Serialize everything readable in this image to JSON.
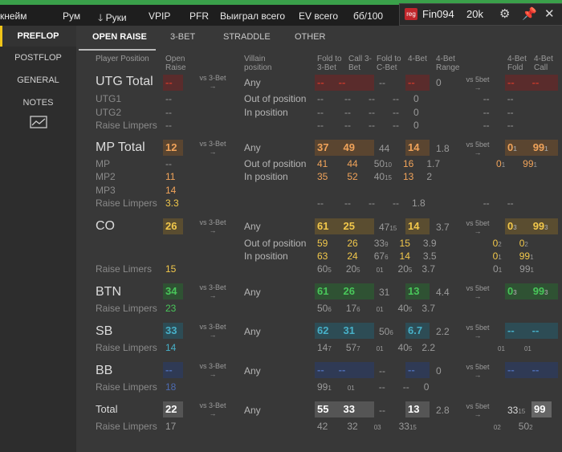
{
  "topbar": {
    "items": [
      "кнейм",
      "Рум",
      "Руки",
      "VPIP",
      "PFR",
      "Выиграл всего",
      "EV всего",
      "бб/100"
    ]
  },
  "player": {
    "badge": "reg",
    "name": "Fin094",
    "amount": "20k"
  },
  "sidebar": {
    "items": [
      "PREFLOP",
      "POSTFLOP",
      "GENERAL",
      "NOTES"
    ]
  },
  "tabs": [
    "OPEN RAISE",
    "3-BET",
    "STRADDLE",
    "OTHER"
  ],
  "headers": {
    "position": "Player Position",
    "open_raise": "Open Raise",
    "villain": "Villain position",
    "fold3": "Fold to 3-Bet",
    "call3": "Call 3-Bet",
    "foldc": "Fold to C-Bet",
    "bet4": "4-Bet",
    "range4": "4-Bet Range",
    "fold4": "4-Bet Fold",
    "call4": "4-Bet Call"
  },
  "vs": {
    "vs3": "vs 3-Bet",
    "vs5": "vs 5bet",
    "arrow": "→"
  },
  "rows": {
    "utg_total": "UTG Total",
    "utg1": "UTG1",
    "utg2": "UTG2",
    "raise_limpers": "Raise Limpers",
    "raise_limers": "Raise Limers",
    "mp_total": "MP Total",
    "mp": "MP",
    "mp2": "MP2",
    "mp3": "MP3",
    "co": "CO",
    "btn": "BTN",
    "sb": "SB",
    "bb": "BB",
    "total": "Total"
  },
  "villain": {
    "any": "Any",
    "oop": "Out of position",
    "ip": "In position"
  },
  "vals": {
    "dash": "--",
    "zero": "0",
    "mp_open": "12",
    "mp_open_mp": "--",
    "mp2_open": "11",
    "mp3_open": "14",
    "mp_rl": "3.3",
    "mp_any": [
      "37",
      "49",
      "44",
      "14",
      "1.8",
      "0",
      "1",
      "99",
      "1"
    ],
    "mp_oop": [
      "41",
      "44",
      "50",
      "10",
      "16",
      "1.7",
      "0",
      "1",
      "99",
      "1"
    ],
    "mp_ip": [
      "35",
      "52",
      "40",
      "15",
      "13",
      "2"
    ],
    "mp_rl_range": "1.8",
    "co_open": "26",
    "co_any": [
      "61",
      "25",
      "47",
      "15",
      "14",
      "3.7",
      "0",
      "3",
      "99",
      "3"
    ],
    "co_oop": [
      "59",
      "26",
      "33",
      "9",
      "15",
      "3.9",
      "0",
      "2",
      "0",
      "2"
    ],
    "co_ip": [
      "63",
      "24",
      "67",
      "6",
      "14",
      "3.5",
      "0",
      "1",
      "99",
      "1"
    ],
    "co_rl": [
      "15",
      "60",
      "5",
      "20",
      "5",
      "01",
      "20",
      "5",
      "3.7",
      "0",
      "1",
      "99",
      "1"
    ],
    "btn_open": "34",
    "btn_any": [
      "61",
      "26",
      "31",
      "13",
      "4.4",
      "0",
      "3",
      "99",
      "3"
    ],
    "btn_rl": [
      "23",
      "50",
      "6",
      "17",
      "6",
      "01",
      "40",
      "5",
      "3.7"
    ],
    "sb_open": "33",
    "sb_any": [
      "62",
      "31",
      "50",
      "6",
      "6.7",
      "2.2"
    ],
    "sb_rl": [
      "14",
      "14",
      "7",
      "57",
      "7",
      "01",
      "40",
      "5",
      "2.2",
      "01",
      "01"
    ],
    "bb_rl": [
      "18",
      "99",
      "1",
      "01"
    ],
    "total_open": "22",
    "total_any": [
      "55",
      "33",
      "13",
      "2.8",
      "33",
      "15",
      "99"
    ],
    "total_rl": [
      "17",
      "42",
      "32",
      "03",
      "33",
      "15",
      "02",
      "50",
      "2"
    ]
  },
  "colors": {
    "red": "#c0392b",
    "orange": "#f0a35a",
    "yellow": "#f2c84b",
    "green": "#49c65a",
    "teal": "#47b0c8",
    "blue": "#4d6bb0"
  }
}
